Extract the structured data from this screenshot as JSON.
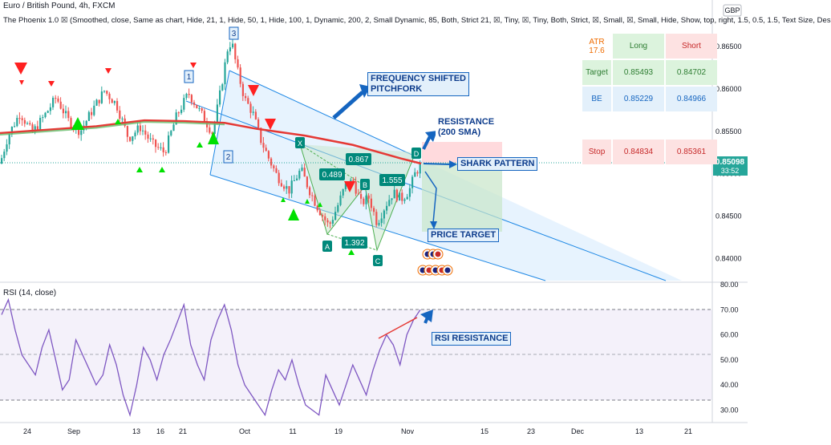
{
  "header": {
    "title": "Euro / British Pound, 4h, FXCM",
    "indicator_line": "The Phoenix 1.0 ☒ (Smoothed, close, Same as chart, Hide, 21, 1, Hide, 50, 1, Hide, 100, 1, Dynamic, 200, 2, Small Dynamic, 85, Both, Strict 21, ☒, Tiny, ☒, Tiny, Both, Strict, ☒, Small, ☒, Small, Hide, Show, top, right, 1.5, 0.5, 1.5, Text Size, Des",
    "currency_badge": "GBP",
    "last_price": "0.85098",
    "countdown": "33:52"
  },
  "rsi_panel": {
    "title": "RSI (14, close)"
  },
  "trade_table": {
    "atr_label": "ATR",
    "atr_value": "17.6",
    "long_header": "Long",
    "short_header": "Short",
    "rows": [
      {
        "label": "Target",
        "long": "0.85493",
        "short": "0.84702"
      },
      {
        "label": "BE",
        "long": "0.85229",
        "short": "0.84966"
      },
      {
        "label": "Stop",
        "long": "0.84834",
        "short": "0.85361"
      }
    ]
  },
  "annotations": {
    "pitchfork": "FREQUENCY SHIFTED\nPITCHFORK",
    "resistance": "RESISTANCE\n(200 SMA)",
    "shark": "SHARK PATTERN",
    "price_target": "PRICE TARGET",
    "rsi_resistance": "RSI RESISTANCE"
  },
  "pattern_labels": {
    "x": "X",
    "a": "A",
    "b": "B",
    "c": "C",
    "d": "D",
    "r1": "0.489",
    "r2": "0.867",
    "r3": "1.392",
    "r4": "1.555",
    "w1": "1",
    "w2": "2",
    "w3": "3"
  },
  "colors": {
    "bull": "#26a69a",
    "bear": "#ef5350",
    "sma200": "#e53935",
    "triangle_up": "#00e000",
    "triangle_down": "#ff2020",
    "pitchfork": "#1e88e5",
    "rsi_line": "#7e57c2",
    "accent": "#1565c0"
  },
  "chart_data": [
    {
      "type": "candlestick",
      "title": "Euro / British Pound, 4h, FXCM",
      "x_tick_labels": [
        "24",
        "Sep",
        "13",
        "16",
        "21",
        "Oct",
        "11",
        "19",
        "Nov",
        "15",
        "23",
        "Dec",
        "13",
        "21"
      ],
      "y_ticks": [
        0.84,
        0.845,
        0.85,
        0.855,
        0.86,
        0.865
      ],
      "ylim": [
        0.8372,
        0.8705
      ],
      "last_price": 0.85098,
      "approx_close_path": [
        [
          0,
          0.8512
        ],
        [
          10,
          0.8545
        ],
        [
          25,
          0.8572
        ],
        [
          40,
          0.8548
        ],
        [
          55,
          0.8568
        ],
        [
          70,
          0.859
        ],
        [
          85,
          0.8563
        ],
        [
          100,
          0.855
        ],
        [
          115,
          0.8575
        ],
        [
          130,
          0.8598
        ],
        [
          145,
          0.8582
        ],
        [
          160,
          0.8542
        ],
        [
          175,
          0.8555
        ],
        [
          190,
          0.8535
        ],
        [
          205,
          0.8525
        ],
        [
          220,
          0.8568
        ],
        [
          235,
          0.8595
        ],
        [
          250,
          0.8572
        ],
        [
          265,
          0.8548
        ],
        [
          275,
          0.8598
        ],
        [
          285,
          0.8655
        ],
        [
          290,
          0.865
        ],
        [
          295,
          0.8625
        ],
        [
          305,
          0.8588
        ],
        [
          315,
          0.8572
        ],
        [
          325,
          0.854
        ],
        [
          335,
          0.8518
        ],
        [
          345,
          0.8498
        ],
        [
          360,
          0.848
        ],
        [
          375,
          0.8505
        ],
        [
          385,
          0.8482
        ],
        [
          395,
          0.8462
        ],
        [
          410,
          0.8438
        ],
        [
          420,
          0.846
        ],
        [
          430,
          0.8485
        ],
        [
          440,
          0.8492
        ],
        [
          450,
          0.8465
        ],
        [
          460,
          0.8472
        ],
        [
          470,
          0.8442
        ],
        [
          480,
          0.8462
        ],
        [
          490,
          0.8478
        ],
        [
          500,
          0.847
        ],
        [
          510,
          0.848
        ],
        [
          518,
          0.8502
        ],
        [
          525,
          0.851
        ]
      ],
      "sma200_path": [
        [
          0,
          0.8548
        ],
        [
          60,
          0.8552
        ],
        [
          120,
          0.8556
        ],
        [
          180,
          0.8563
        ],
        [
          230,
          0.8562
        ],
        [
          280,
          0.856
        ],
        [
          320,
          0.8553
        ],
        [
          380,
          0.8545
        ],
        [
          440,
          0.8534
        ],
        [
          500,
          0.8518
        ],
        [
          525,
          0.8512
        ]
      ]
    },
    {
      "type": "line",
      "title": "RSI (14, close)",
      "y_ticks": [
        30,
        40,
        50,
        60,
        70,
        80
      ],
      "ylim": [
        25,
        80
      ],
      "bands": [
        30,
        50,
        70
      ],
      "values": [
        68,
        74,
        62,
        52,
        48,
        44,
        55,
        62,
        50,
        38,
        42,
        58,
        52,
        46,
        40,
        44,
        56,
        48,
        36,
        28,
        40,
        55,
        50,
        42,
        52,
        58,
        65,
        72,
        56,
        48,
        42,
        58,
        66,
        72,
        62,
        48,
        40,
        36,
        32,
        28,
        38,
        46,
        42,
        50,
        40,
        32,
        30,
        28,
        44,
        38,
        32,
        40,
        48,
        42,
        36,
        46,
        54,
        60,
        56,
        48,
        60,
        66,
        70
      ]
    }
  ]
}
